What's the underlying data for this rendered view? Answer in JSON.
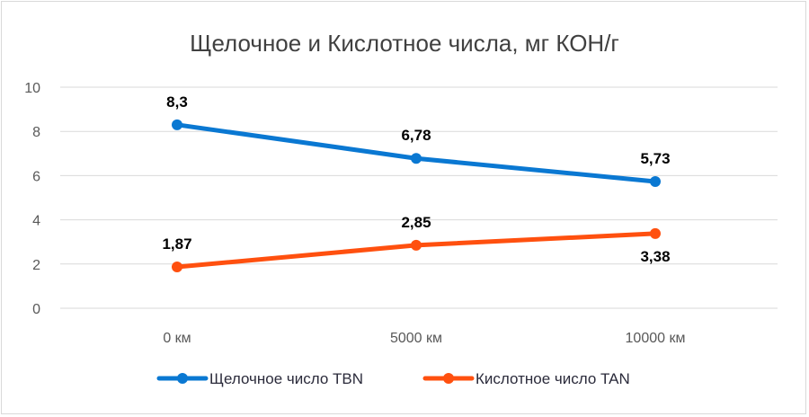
{
  "chart_data": {
    "type": "line",
    "title": "Щелочное и Кислотное числа, мг КОН/г",
    "categories": [
      "0 км",
      "5000 км",
      "10000 км"
    ],
    "series": [
      {
        "name": "Щелочное число TBN",
        "values": [
          8.3,
          6.78,
          5.73
        ],
        "labels": [
          "8,3",
          "6,78",
          "5,73"
        ],
        "color": "#0A78D2",
        "label_position": "above"
      },
      {
        "name": "Кислотное число TAN",
        "values": [
          1.87,
          2.85,
          3.38
        ],
        "labels": [
          "1,87",
          "2,85",
          "3,38"
        ],
        "color": "#FF500F",
        "label_position": [
          "above",
          "above",
          "below"
        ]
      }
    ],
    "ylim": [
      0,
      10
    ],
    "yticks": [
      0,
      2,
      4,
      6,
      8,
      10
    ],
    "grid": true,
    "legend": "bottom",
    "xlabel": "",
    "ylabel": ""
  }
}
